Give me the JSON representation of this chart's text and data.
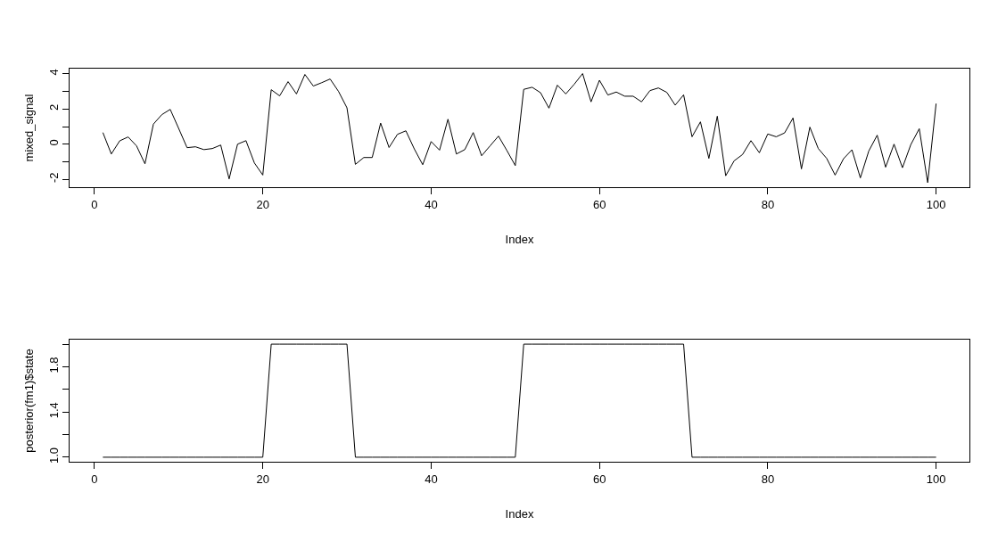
{
  "chart_data": [
    {
      "type": "line",
      "xlabel": "Index",
      "ylabel": "mixed_signal",
      "color": "#000000",
      "x": [
        1,
        2,
        3,
        4,
        5,
        6,
        7,
        8,
        9,
        10,
        11,
        12,
        13,
        14,
        15,
        16,
        17,
        18,
        19,
        20,
        21,
        22,
        23,
        24,
        25,
        26,
        27,
        28,
        29,
        30,
        31,
        32,
        33,
        34,
        35,
        36,
        37,
        38,
        39,
        40,
        41,
        42,
        43,
        44,
        45,
        46,
        47,
        48,
        49,
        50,
        51,
        52,
        53,
        54,
        55,
        56,
        57,
        58,
        59,
        60,
        61,
        62,
        63,
        64,
        65,
        66,
        67,
        68,
        69,
        70,
        71,
        72,
        73,
        74,
        75,
        76,
        77,
        78,
        79,
        80,
        81,
        82,
        83,
        84,
        85,
        86,
        87,
        88,
        89,
        90,
        91,
        92,
        93,
        94,
        95,
        96,
        97,
        98,
        99,
        100
      ],
      "values": [
        0.66,
        -0.56,
        0.19,
        0.41,
        -0.1,
        -1.12,
        1.14,
        1.68,
        1.98,
        0.9,
        -0.2,
        -0.15,
        -0.31,
        -0.25,
        -0.05,
        -1.98,
        0.0,
        0.2,
        -1.07,
        -1.76,
        3.1,
        2.75,
        3.56,
        2.86,
        3.97,
        3.31,
        3.5,
        3.71,
        3.0,
        2.07,
        -1.15,
        -0.76,
        -0.76,
        1.2,
        -0.19,
        0.56,
        0.76,
        -0.27,
        -1.17,
        0.15,
        -0.34,
        1.42,
        -0.56,
        -0.31,
        0.66,
        -0.66,
        -0.1,
        0.46,
        -0.36,
        -1.22,
        3.12,
        3.24,
        2.93,
        2.05,
        3.36,
        2.86,
        3.41,
        4.02,
        2.41,
        3.64,
        2.8,
        2.97,
        2.73,
        2.73,
        2.41,
        3.05,
        3.2,
        2.95,
        2.22,
        2.81,
        0.42,
        1.27,
        -0.81,
        1.59,
        -1.8,
        -0.95,
        -0.59,
        0.2,
        -0.49,
        0.58,
        0.42,
        0.64,
        1.49,
        -1.41,
        0.97,
        -0.25,
        -0.81,
        -1.76,
        -0.83,
        -0.32,
        -1.92,
        -0.39,
        0.51,
        -1.31,
        0.0,
        -1.34,
        -0.02,
        0.88,
        -2.19,
        2.31
      ],
      "xlim": [
        -2.96,
        103.96
      ],
      "xticks": [
        0,
        20,
        40,
        60,
        80,
        100
      ],
      "ylim": [
        -2.45,
        4.3
      ],
      "yticks": [
        -2,
        {
          "value": -1,
          "label": null
        },
        0,
        {
          "value": 1,
          "label": null
        },
        2,
        {
          "value": 3,
          "label": null
        },
        4
      ],
      "grid": false,
      "line_style": "solid"
    },
    {
      "type": "line",
      "xlabel": "Index",
      "ylabel": "posterior(fm1)$state",
      "color": "#000000",
      "x": [
        1,
        2,
        3,
        4,
        5,
        6,
        7,
        8,
        9,
        10,
        11,
        12,
        13,
        14,
        15,
        16,
        17,
        18,
        19,
        20,
        21,
        22,
        23,
        24,
        25,
        26,
        27,
        28,
        29,
        30,
        31,
        32,
        33,
        34,
        35,
        36,
        37,
        38,
        39,
        40,
        41,
        42,
        43,
        44,
        45,
        46,
        47,
        48,
        49,
        50,
        51,
        52,
        53,
        54,
        55,
        56,
        57,
        58,
        59,
        60,
        61,
        62,
        63,
        64,
        65,
        66,
        67,
        68,
        69,
        70,
        71,
        72,
        73,
        74,
        75,
        76,
        77,
        78,
        79,
        80,
        81,
        82,
        83,
        84,
        85,
        86,
        87,
        88,
        89,
        90,
        91,
        92,
        93,
        94,
        95,
        96,
        97,
        98,
        99,
        100
      ],
      "values": [
        1,
        1,
        1,
        1,
        1,
        1,
        1,
        1,
        1,
        1,
        1,
        1,
        1,
        1,
        1,
        1,
        1,
        1,
        1,
        1,
        2,
        2,
        2,
        2,
        2,
        2,
        2,
        2,
        2,
        2,
        1,
        1,
        1,
        1,
        1,
        1,
        1,
        1,
        1,
        1,
        1,
        1,
        1,
        1,
        1,
        1,
        1,
        1,
        1,
        1,
        2,
        2,
        2,
        2,
        2,
        2,
        2,
        2,
        2,
        2,
        2,
        2,
        2,
        2,
        2,
        2,
        2,
        2,
        2,
        2,
        1,
        1,
        1,
        1,
        1,
        1,
        1,
        1,
        1,
        1,
        1,
        1,
        1,
        1,
        1,
        1,
        1,
        1,
        1,
        1,
        1,
        1,
        1,
        1,
        1,
        1,
        1,
        1,
        1,
        1
      ],
      "xlim": [
        -2.96,
        103.96
      ],
      "xticks": [
        0,
        20,
        40,
        60,
        80,
        100
      ],
      "ylim": [
        0.96,
        2.04
      ],
      "yticks": [
        {
          "value": 1.0,
          "label": "1.0"
        },
        {
          "value": 1.2,
          "label": null
        },
        {
          "value": 1.4,
          "label": "1.4"
        },
        {
          "value": 1.6,
          "label": null
        },
        {
          "value": 1.8,
          "label": "1.8"
        },
        {
          "value": 2.0,
          "label": null
        }
      ],
      "grid": false,
      "line_style": "solid"
    }
  ]
}
